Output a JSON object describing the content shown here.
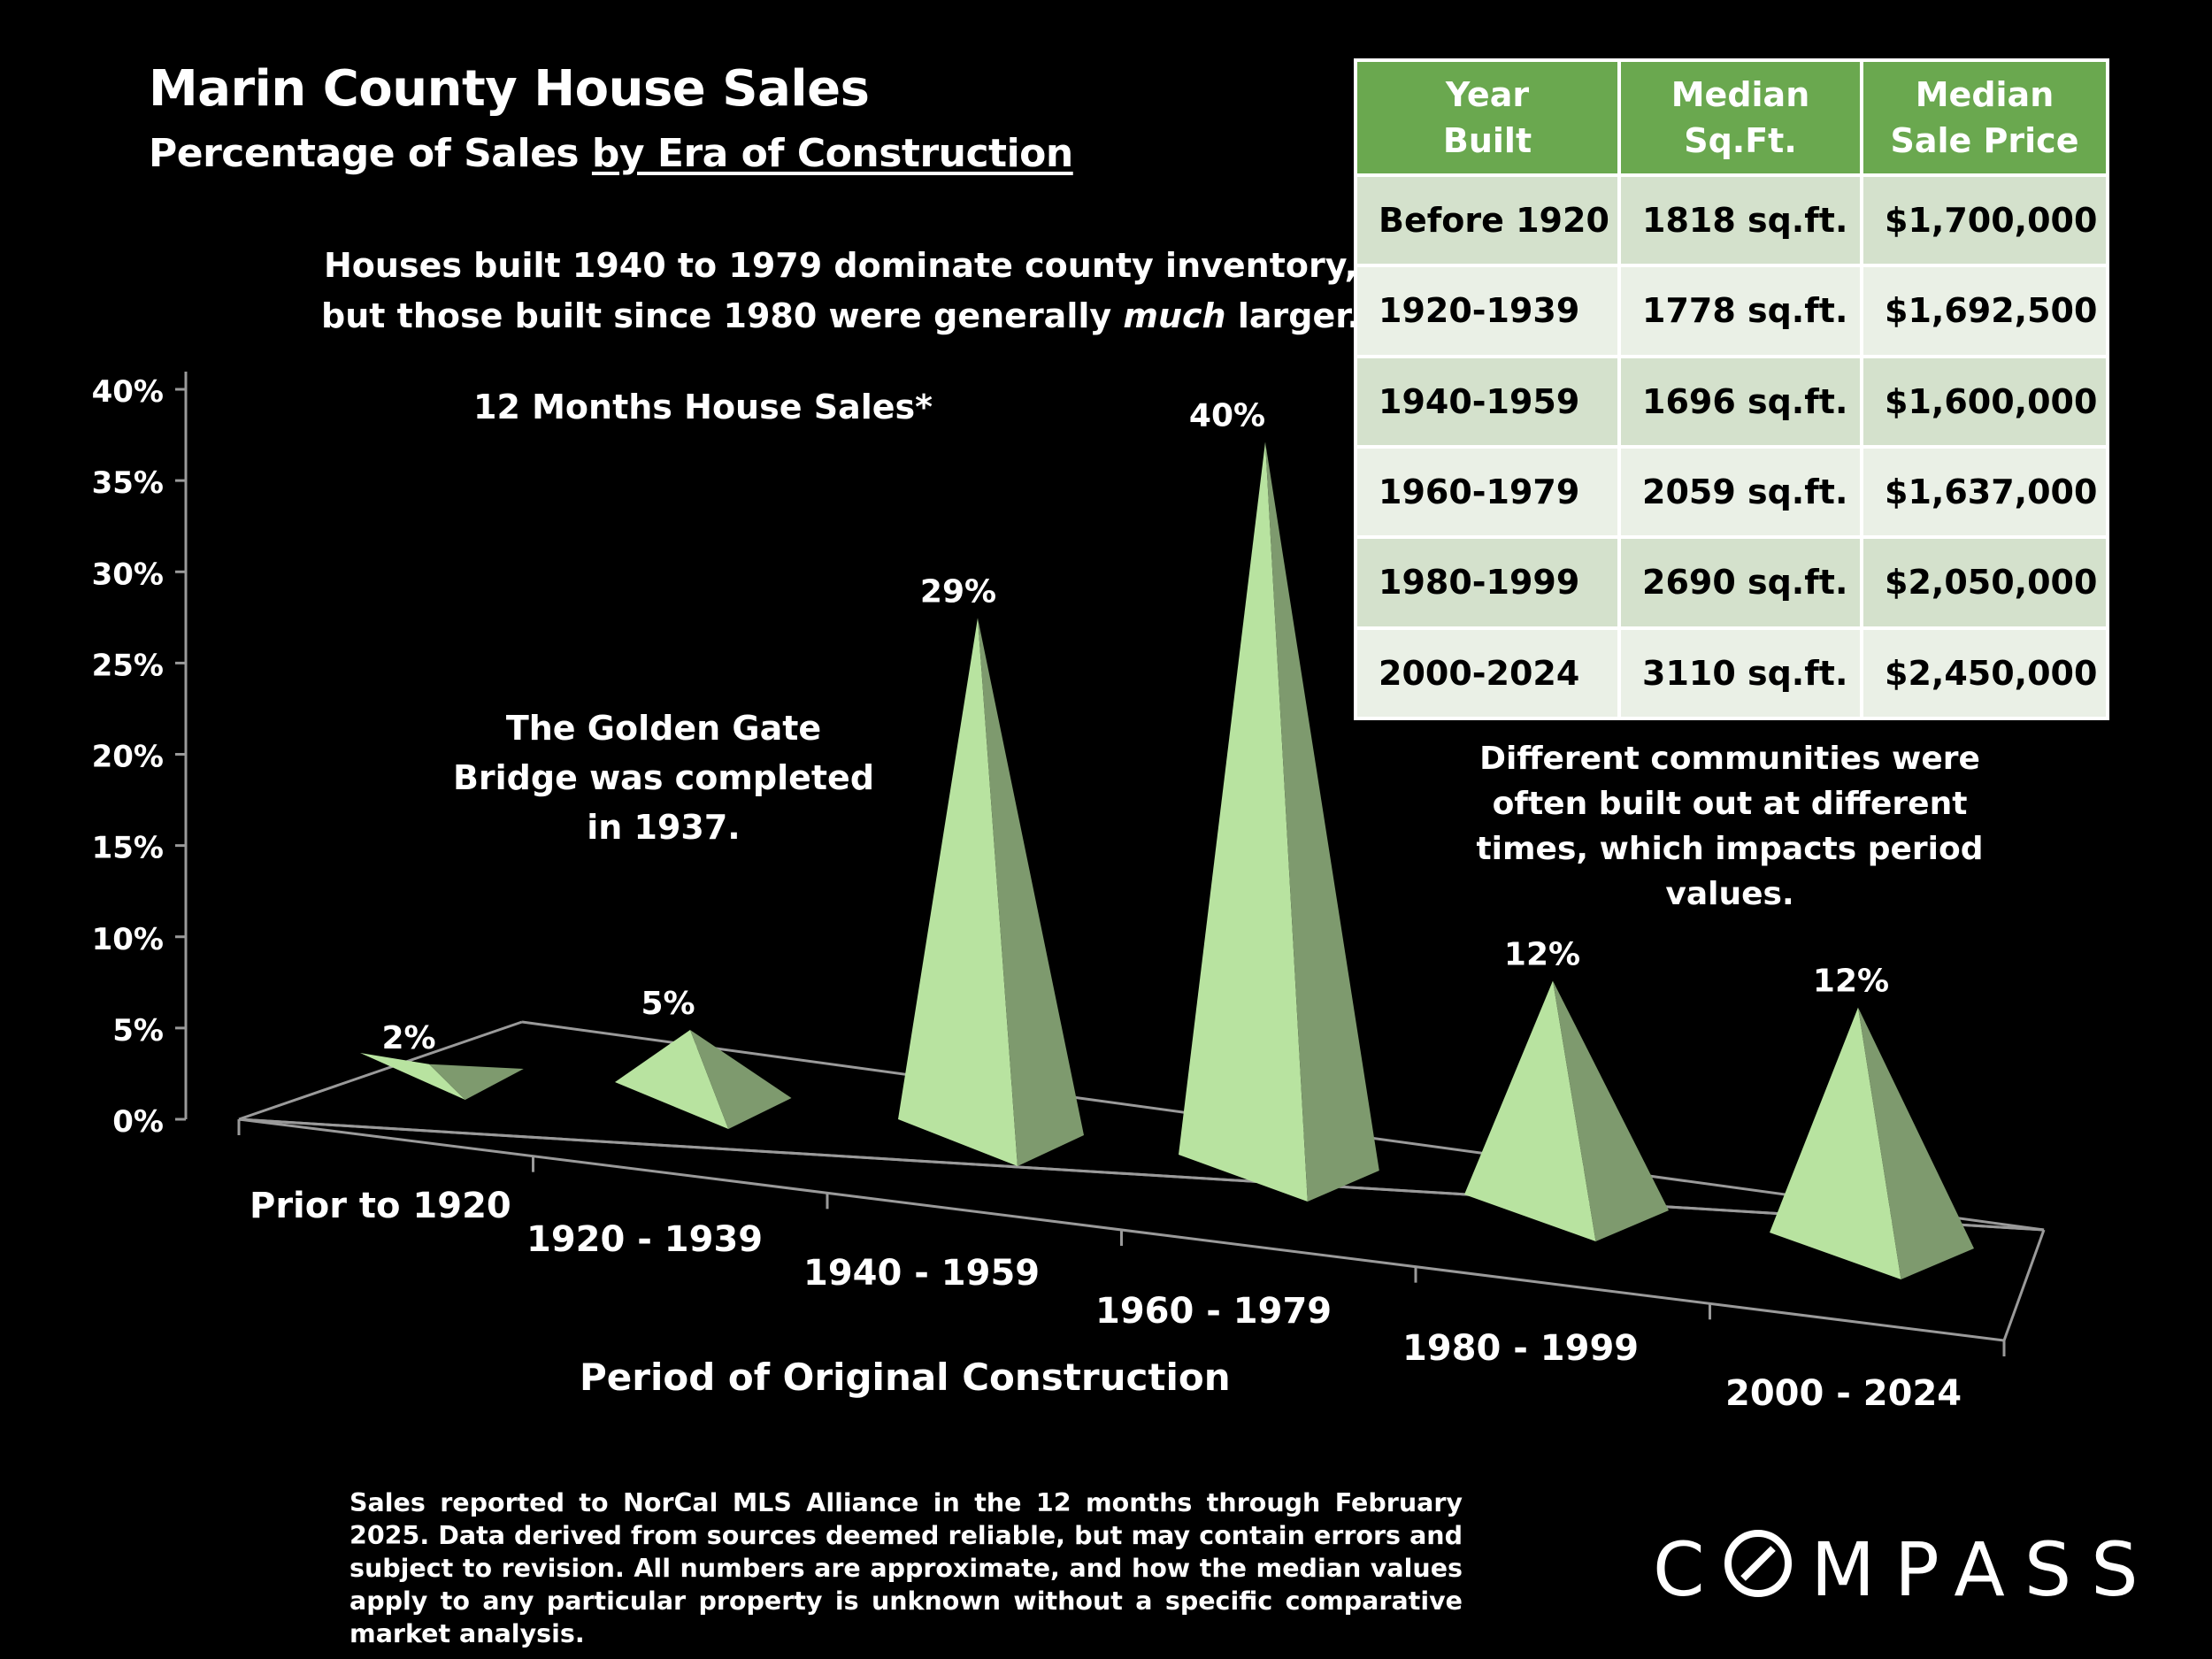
{
  "header": {
    "title": "Marin County House Sales",
    "subtitle_prefix": "Percentage of Sales ",
    "subtitle_underlined": "by Era of Construction"
  },
  "headline": {
    "line1": "Houses built 1940 to 1979 dominate county inventory,",
    "line2_before": "but those built since 1980 were generally ",
    "line2_emphasis": "much",
    "line2_after": " larger."
  },
  "chart_label": "12 Months House Sales*",
  "notes": {
    "bridge": "The Golden Gate Bridge was completed in 1937.",
    "communities": "Different communities were often built out at different times, which impacts period values."
  },
  "chart_data": {
    "type": "bar",
    "style": "3d-pyramid",
    "title": "12 Months House Sales*",
    "xlabel": "Period of Original Construction",
    "ylabel": "",
    "ylim": [
      0,
      40
    ],
    "yticks": [
      "0%",
      "5%",
      "10%",
      "15%",
      "20%",
      "25%",
      "30%",
      "35%",
      "40%"
    ],
    "categories": [
      "Prior to 1920",
      "1920 - 1939",
      "1940 - 1959",
      "1960 - 1979",
      "1980 - 1999",
      "2000 - 2024"
    ],
    "values": [
      2,
      5,
      29,
      40,
      12,
      12
    ],
    "value_labels": [
      "2%",
      "5%",
      "29%",
      "40%",
      "12%",
      "12%"
    ],
    "units": "percent of sales",
    "colors": {
      "front": "#b8e3a0",
      "side": "#7e9a6e",
      "axis": "#9a9a9a"
    }
  },
  "table": {
    "headers": [
      "Year\nBuilt",
      "Median\nSq.Ft.",
      "Median\nSale Price"
    ],
    "rows": [
      [
        "Before 1920",
        "1818 sq.ft.",
        "$1,700,000"
      ],
      [
        "1920-1939",
        "1778 sq.ft.",
        "$1,692,500"
      ],
      [
        "1940-1959",
        "1696 sq.ft.",
        "$1,600,000"
      ],
      [
        "1960-1979",
        "2059 sq.ft.",
        "$1,637,000"
      ],
      [
        "1980-1999",
        "2690 sq.ft.",
        "$2,050,000"
      ],
      [
        "2000-2024",
        "3110 sq.ft.",
        "$2,450,000"
      ]
    ],
    "colors": {
      "header": "#6aa84f",
      "row_odd": "#d4e1cc",
      "row_even": "#eaf0e6"
    }
  },
  "footnote": "Sales reported to NorCal MLS Alliance in the 12 months through February 2025. Data derived from sources deemed reliable, but may contain errors and subject to revision. All numbers are approximate, and how the median values apply to any particular property is unknown without a specific comparative market analysis.",
  "brand": {
    "first": "C",
    "rest": "MPASS",
    "full": "COMPASS"
  }
}
